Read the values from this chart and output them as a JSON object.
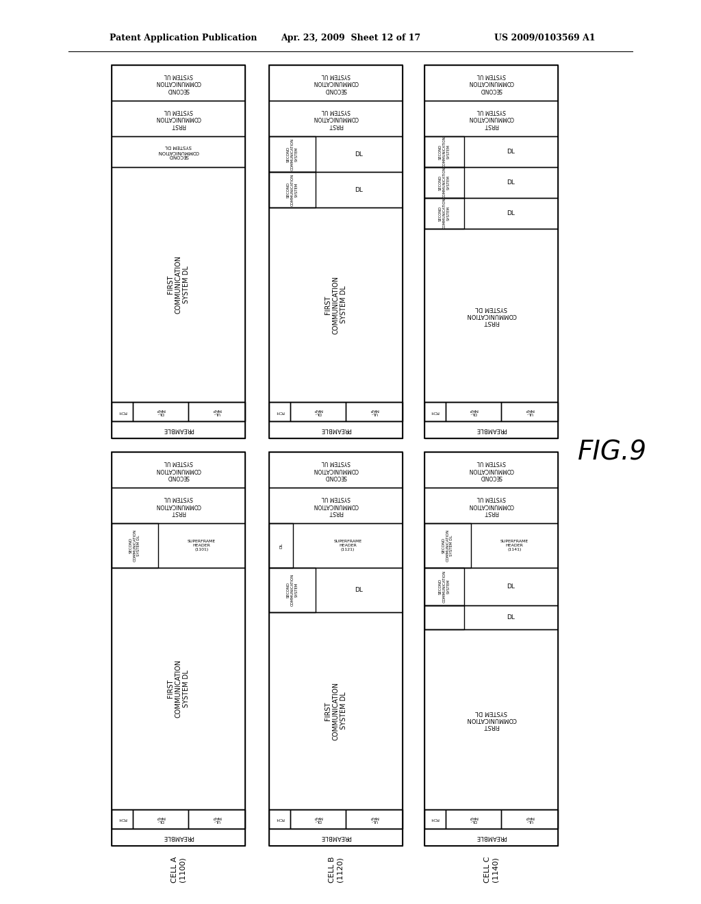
{
  "title_left": "Patent Application Publication",
  "title_center": "Apr. 23, 2009  Sheet 12 of 17",
  "title_right": "US 2009/0103569 A1",
  "fig_label": "FIG.9",
  "background": "#ffffff"
}
